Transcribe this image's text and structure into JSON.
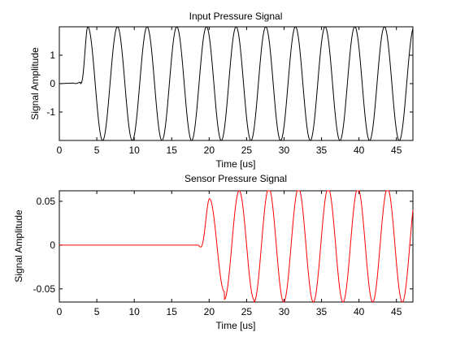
{
  "chart_data": [
    {
      "type": "line",
      "title": "Input Pressure Signal",
      "xlabel": "Time [us]",
      "ylabel": "Signal Amplitude",
      "xlim": [
        0,
        47.2
      ],
      "ylim": [
        -2,
        2
      ],
      "x_ticks": [
        "0",
        "5",
        "10",
        "15",
        "20",
        "25",
        "30",
        "35",
        "40",
        "45"
      ],
      "x_tick_values": [
        0,
        5,
        10,
        15,
        20,
        25,
        30,
        35,
        40,
        45
      ],
      "y_ticks": [
        "-1",
        "0",
        "1"
      ],
      "y_tick_values": [
        -1,
        0,
        1
      ],
      "grid": false,
      "series": [
        {
          "color": "#000000",
          "signal": {
            "kind": "tone-burst",
            "onset_us": 2.8,
            "period_us": 3.96,
            "first_peak_us": 3.8,
            "amplitude": 2.0,
            "pre_onset": [
              [
                0,
                0
              ],
              [
                1.8,
                0.02
              ],
              [
                2.2,
                0.0
              ],
              [
                2.8,
                0.05
              ]
            ]
          }
        }
      ]
    },
    {
      "type": "line",
      "title": "Sensor Pressure Signal",
      "xlabel": "Time [us]",
      "ylabel": "Signal Amplitude",
      "xlim": [
        0,
        47.2
      ],
      "ylim": [
        -0.065,
        0.062
      ],
      "x_ticks": [
        "0",
        "5",
        "10",
        "15",
        "20",
        "25",
        "30",
        "35",
        "40",
        "45"
      ],
      "x_tick_values": [
        0,
        5,
        10,
        15,
        20,
        25,
        30,
        35,
        40,
        45
      ],
      "y_ticks": [
        "-0.05",
        "0",
        "0.05"
      ],
      "y_tick_values": [
        -0.05,
        0,
        0.05
      ],
      "grid": false,
      "series": [
        {
          "color": "#ff0000",
          "signal": {
            "kind": "tone-burst",
            "onset_us": 18.5,
            "period_us": 3.96,
            "first_peak_us": 20.05,
            "amplitude": 0.065,
            "ramp_peaks": [
              0.053,
              0.062
            ],
            "pre_onset": [
              [
                0,
                0
              ],
              [
                18.5,
                0
              ],
              [
                18.9,
                0.001
              ],
              [
                19.1,
                -0.002
              ],
              [
                19.3,
                0.0
              ]
            ]
          }
        }
      ]
    }
  ]
}
